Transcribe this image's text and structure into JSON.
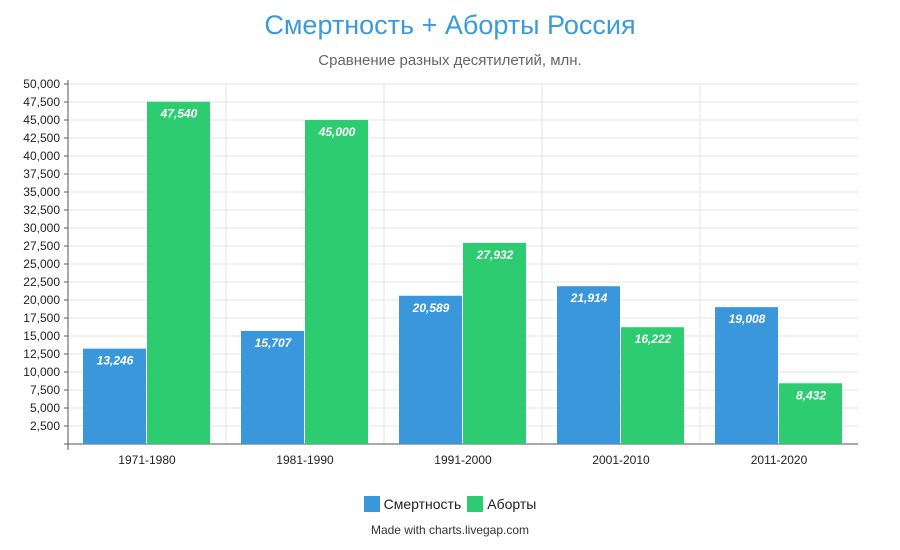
{
  "chart_data": {
    "type": "bar",
    "title": "Смертность + Аборты Россия",
    "subtitle": "Сравнение разных десятилетий, млн.",
    "categories": [
      "1971-1980",
      "1981-1990",
      "1991-2000",
      "2001-2010",
      "2011-2020"
    ],
    "series": [
      {
        "name": "Смертность",
        "color": "#3a97db",
        "values": [
          13246,
          15707,
          20589,
          21914,
          19008
        ],
        "labels": [
          "13,246",
          "15,707",
          "20,589",
          "21,914",
          "19,008"
        ]
      },
      {
        "name": "Аборты",
        "color": "#2ecc71",
        "values": [
          47540,
          45000,
          27932,
          16222,
          8432
        ],
        "labels": [
          "47,540",
          "45,000",
          "27,932",
          "16,222",
          "8,432"
        ]
      }
    ],
    "ylim": [
      0,
      50000
    ],
    "yticks": [
      "2,500",
      "5,000",
      "7,500",
      "10,000",
      "12,500",
      "15,000",
      "17,500",
      "20,000",
      "22,500",
      "25,000",
      "27,500",
      "30,000",
      "32,500",
      "35,000",
      "37,500",
      "40,000",
      "42,500",
      "45,000",
      "47,500",
      "50,000"
    ],
    "ytick_values": [
      2500,
      5000,
      7500,
      10000,
      12500,
      15000,
      17500,
      20000,
      22500,
      25000,
      27500,
      30000,
      32500,
      35000,
      37500,
      40000,
      42500,
      45000,
      47500,
      50000
    ],
    "grid": true,
    "legend_position": "bottom"
  },
  "footer": {
    "credit": "Made with charts.livegap.com"
  }
}
